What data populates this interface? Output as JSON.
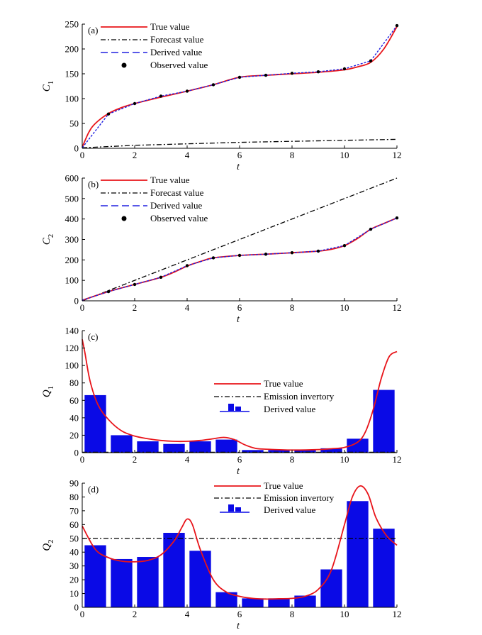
{
  "chart_data": [
    {
      "type": "line",
      "panel_label": "(a)",
      "ylabel_main": "C",
      "ylabel_sub": "1",
      "xlabel": "t",
      "xlim": [
        0,
        12
      ],
      "ylim": [
        0,
        250
      ],
      "xticks": [
        "0",
        "2",
        "4",
        "6",
        "8",
        "10",
        "12"
      ],
      "yticks": [
        "0",
        "50",
        "100",
        "150",
        "200",
        "250"
      ],
      "legend": [
        "True value",
        "Forecast value",
        "Derived value",
        "Observed value"
      ],
      "legend_position": "top-left",
      "colors": {
        "true": "#e8141a",
        "forecast": "#000000",
        "derived": "#2020e0",
        "observed": "#000000"
      },
      "true_curve": {
        "x": [
          0,
          0.25,
          0.5,
          1,
          1.5,
          2,
          3,
          4,
          5,
          6,
          7,
          8,
          9,
          10,
          10.5,
          11,
          11.5,
          12
        ],
        "y": [
          2,
          32,
          50,
          70,
          82,
          90,
          103,
          115,
          128,
          143,
          147,
          150,
          153,
          158,
          164,
          173,
          200,
          245
        ]
      },
      "forecast": {
        "x": [
          0,
          2,
          4,
          6,
          8,
          10,
          12
        ],
        "y": [
          1,
          6,
          9,
          12,
          14,
          16,
          18
        ]
      },
      "derived": {
        "x": [
          0,
          1,
          2,
          3,
          4,
          5,
          6,
          7,
          8,
          9,
          10,
          11,
          12
        ],
        "y": [
          1,
          69,
          90,
          105,
          115,
          128,
          143,
          147,
          151,
          154,
          160,
          176,
          247
        ]
      },
      "observed": {
        "x": [
          1,
          2,
          3,
          4,
          5,
          6,
          7,
          8,
          9,
          10,
          11,
          12
        ],
        "y": [
          69,
          90,
          105,
          115,
          128,
          143,
          147,
          151,
          154,
          160,
          176,
          247
        ]
      }
    },
    {
      "type": "line",
      "panel_label": "(b)",
      "ylabel_main": "C",
      "ylabel_sub": "2",
      "xlabel": "t",
      "xlim": [
        0,
        12
      ],
      "ylim": [
        0,
        600
      ],
      "xticks": [
        "0",
        "2",
        "4",
        "6",
        "8",
        "10",
        "12"
      ],
      "yticks": [
        "0",
        "100",
        "200",
        "300",
        "400",
        "500",
        "600"
      ],
      "legend": [
        "True value",
        "Forecast value",
        "Derived value",
        "Observed value"
      ],
      "legend_position": "top-left",
      "colors": {
        "true": "#e8141a",
        "forecast": "#000000",
        "derived": "#2020e0",
        "observed": "#000000"
      },
      "true_curve": {
        "x": [
          0,
          1,
          2,
          3,
          3.5,
          4,
          4.5,
          5,
          6,
          7,
          8,
          9,
          9.5,
          10,
          10.5,
          11,
          11.5,
          12
        ],
        "y": [
          3,
          45,
          80,
          115,
          140,
          170,
          192,
          210,
          222,
          228,
          235,
          243,
          252,
          270,
          305,
          350,
          378,
          405
        ]
      },
      "forecast": {
        "x": [
          0,
          12
        ],
        "y": [
          0,
          600
        ]
      },
      "derived": {
        "x": [
          0,
          1,
          2,
          3,
          4,
          5,
          6,
          7,
          8,
          9,
          10,
          11,
          12
        ],
        "y": [
          3,
          45,
          80,
          115,
          172,
          210,
          222,
          228,
          235,
          243,
          270,
          350,
          405
        ]
      },
      "observed": {
        "x": [
          1,
          2,
          3,
          4,
          5,
          6,
          7,
          8,
          9,
          10,
          11,
          12
        ],
        "y": [
          45,
          80,
          115,
          172,
          210,
          222,
          228,
          235,
          243,
          270,
          350,
          405
        ]
      }
    },
    {
      "type": "bar",
      "panel_label": "(c)",
      "ylabel_main": "Q",
      "ylabel_sub": "1",
      "xlabel": "t",
      "xlim": [
        0,
        12
      ],
      "ylim": [
        0,
        140
      ],
      "xticks": [
        "0",
        "2",
        "4",
        "6",
        "8",
        "10",
        "12"
      ],
      "yticks": [
        "0",
        "20",
        "40",
        "60",
        "80",
        "100",
        "120",
        "140"
      ],
      "legend": [
        "True value",
        "Emission invertory",
        "Derived value"
      ],
      "legend_position": "center",
      "colors": {
        "true": "#e8141a",
        "emission": "#000000",
        "bars": "#0a0ae6"
      },
      "bar_x": [
        0.5,
        1.5,
        2.5,
        3.5,
        4.5,
        5.5,
        6.5,
        7.5,
        8.5,
        9.5,
        10.5,
        11.5
      ],
      "bar_values": [
        66,
        20,
        13,
        10,
        13,
        15,
        3,
        3,
        3,
        5,
        16,
        72
      ],
      "emission_level": 0.5,
      "true_curve": {
        "x": [
          0,
          0.1,
          0.3,
          0.6,
          1,
          1.5,
          2,
          2.5,
          3,
          3.5,
          4,
          4.5,
          5,
          5.4,
          5.8,
          6.2,
          6.6,
          7,
          8,
          9,
          9.5,
          10,
          10.5,
          10.8,
          11.1,
          11.4,
          11.7,
          12
        ],
        "y": [
          130,
          115,
          82,
          55,
          38,
          25,
          19,
          16,
          14,
          13,
          13,
          14,
          16,
          17.5,
          15,
          9,
          5,
          4,
          3,
          3.5,
          4.5,
          6,
          12,
          24,
          50,
          85,
          110,
          116
        ]
      }
    },
    {
      "type": "bar",
      "panel_label": "(d)",
      "ylabel_main": "Q",
      "ylabel_sub": "2",
      "xlabel": "t",
      "xlim": [
        0,
        12
      ],
      "ylim": [
        0,
        90
      ],
      "xticks": [
        "0",
        "2",
        "4",
        "6",
        "8",
        "10",
        "12"
      ],
      "yticks": [
        "0",
        "10",
        "20",
        "30",
        "40",
        "50",
        "60",
        "70",
        "80",
        "90"
      ],
      "legend": [
        "True value",
        "Emission invertory",
        "Derived value"
      ],
      "legend_position": "top-center",
      "colors": {
        "true": "#e8141a",
        "emission": "#000000",
        "bars": "#0a0ae6"
      },
      "bar_x": [
        0.5,
        1.5,
        2.5,
        3.5,
        4.5,
        5.5,
        6.5,
        7.5,
        8.5,
        9.5,
        10.5,
        11.5
      ],
      "bar_values": [
        45,
        35,
        36.5,
        54,
        41,
        11,
        6.5,
        6.5,
        8.5,
        27.5,
        77,
        57
      ],
      "emission_level": 50,
      "true_curve": {
        "x": [
          0,
          0.5,
          1,
          1.5,
          2,
          2.5,
          3,
          3.5,
          3.8,
          4,
          4.2,
          4.5,
          5,
          5.5,
          6,
          6.5,
          7,
          7.5,
          8,
          8.5,
          9,
          9.5,
          10,
          10.3,
          10.6,
          10.9,
          11.2,
          11.6,
          12
        ],
        "y": [
          59,
          42,
          36,
          33.5,
          33,
          34,
          38,
          48,
          58,
          64,
          60,
          42,
          20,
          11,
          8,
          6.5,
          6,
          6.2,
          6.5,
          8,
          13,
          27,
          60,
          80,
          88,
          82,
          65,
          52,
          45
        ]
      }
    }
  ]
}
